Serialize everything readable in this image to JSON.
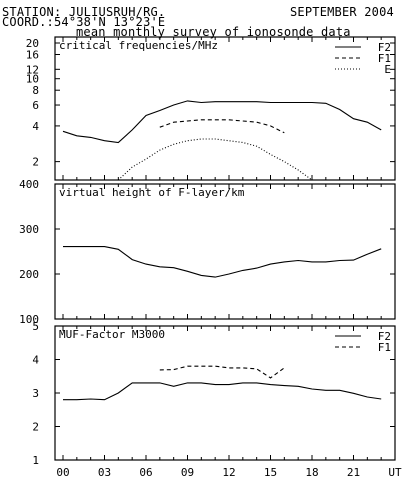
{
  "header": {
    "station": "STATION: JULIUSRUH/RG.",
    "date": "SEPTEMBER 2004",
    "coord": "COORD.:54°38'N 13°23'E",
    "title": "mean monthly survey of ionosonde data"
  },
  "x_axis": {
    "ticks": [
      "00",
      "03",
      "06",
      "09",
      "12",
      "15",
      "18",
      "21",
      "UT"
    ]
  },
  "chart_data": [
    {
      "type": "line",
      "title": "critical frequencies/MHz",
      "ylabel": "",
      "xlabel": "UT",
      "y_scale": "log",
      "ylim": [
        1.4,
        20
      ],
      "y_ticks": [
        2,
        4,
        6,
        8,
        10,
        12,
        16,
        20
      ],
      "xlim": [
        0,
        24
      ],
      "legend": "top-right",
      "series": [
        {
          "name": "F2",
          "style": "solid",
          "x": [
            0,
            1,
            2,
            3,
            4,
            5,
            6,
            7,
            8,
            9,
            10,
            11,
            12,
            13,
            14,
            15,
            16,
            17,
            18,
            19,
            20,
            21,
            22,
            23
          ],
          "values": [
            3.6,
            3.3,
            3.2,
            3.0,
            2.9,
            3.7,
            4.9,
            5.4,
            6.0,
            6.5,
            6.3,
            6.4,
            6.4,
            6.4,
            6.4,
            6.3,
            6.3,
            6.3,
            6.3,
            6.2,
            5.5,
            4.6,
            4.3,
            3.7
          ]
        },
        {
          "name": "F1",
          "style": "dashed",
          "x": [
            7,
            8,
            9,
            10,
            11,
            12,
            13,
            14,
            15,
            16
          ],
          "values": [
            3.9,
            4.3,
            4.4,
            4.5,
            4.5,
            4.5,
            4.4,
            4.3,
            4.0,
            3.5
          ]
        },
        {
          "name": "E",
          "style": "dotted",
          "x": [
            4,
            5,
            6,
            7,
            8,
            9,
            10,
            11,
            12,
            13,
            14,
            15,
            16,
            17,
            18
          ],
          "values": [
            1.4,
            1.8,
            2.1,
            2.5,
            2.8,
            3.0,
            3.1,
            3.1,
            3.0,
            2.9,
            2.7,
            2.3,
            2.0,
            1.7,
            1.4
          ]
        }
      ]
    },
    {
      "type": "line",
      "title": "virtual height of F-layer/km",
      "ylabel": "",
      "xlabel": "UT",
      "y_scale": "linear",
      "ylim": [
        100,
        400
      ],
      "y_ticks": [
        100,
        200,
        300,
        400
      ],
      "xlim": [
        0,
        24
      ],
      "series": [
        {
          "name": "",
          "style": "solid",
          "x": [
            0,
            1,
            2,
            3,
            4,
            5,
            6,
            7,
            8,
            9,
            10,
            11,
            12,
            13,
            14,
            15,
            16,
            17,
            18,
            19,
            20,
            21,
            22,
            23
          ],
          "values": [
            261,
            261,
            261,
            261,
            255,
            232,
            222,
            216,
            214,
            206,
            197,
            193,
            200,
            208,
            213,
            222,
            227,
            230,
            227,
            227,
            230,
            231,
            244,
            256
          ]
        }
      ]
    },
    {
      "type": "line",
      "title": "MUF-Factor M3000",
      "ylabel": "",
      "xlabel": "UT",
      "y_scale": "linear",
      "ylim": [
        1,
        5
      ],
      "y_ticks": [
        1,
        2,
        3,
        4,
        5
      ],
      "xlim": [
        0,
        24
      ],
      "legend": "top-right",
      "series": [
        {
          "name": "F2",
          "style": "solid",
          "x": [
            0,
            1,
            2,
            3,
            4,
            5,
            6,
            7,
            8,
            9,
            10,
            11,
            12,
            13,
            14,
            15,
            16,
            17,
            18,
            19,
            20,
            21,
            22,
            23
          ],
          "values": [
            2.8,
            2.8,
            2.82,
            2.8,
            3.0,
            3.3,
            3.3,
            3.3,
            3.2,
            3.3,
            3.3,
            3.25,
            3.25,
            3.3,
            3.3,
            3.25,
            3.22,
            3.2,
            3.12,
            3.08,
            3.08,
            2.99,
            2.88,
            2.82
          ]
        },
        {
          "name": "F1",
          "style": "dashed",
          "x": [
            7,
            8,
            9,
            10,
            11,
            12,
            13,
            14,
            15,
            16
          ],
          "values": [
            3.69,
            3.7,
            3.8,
            3.8,
            3.8,
            3.75,
            3.75,
            3.72,
            3.45,
            3.75
          ]
        }
      ]
    }
  ]
}
